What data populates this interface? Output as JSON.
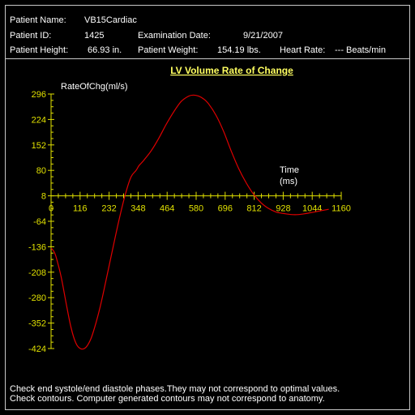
{
  "patient": {
    "name_label": "Patient Name:",
    "name_value": "VB15Cardiac",
    "id_label": "Patient ID:",
    "id_value": "1425",
    "exam_date_label": "Examination Date:",
    "exam_date_value": "9/21/2007",
    "height_label": "Patient Height:",
    "height_value": "66.93 in.",
    "weight_label": "Patient Weight:",
    "weight_value": "154.19 lbs.",
    "heart_rate_label": "Heart Rate:",
    "heart_rate_value": "--- Beats/min"
  },
  "chart_data": {
    "type": "line",
    "title": "LV Volume Rate of Change",
    "ylabel": "RateOfChg(ml/s)",
    "xlabel_line1": "Time",
    "xlabel_line2": "(ms)",
    "xlim": [
      0,
      1160
    ],
    "ylim": [
      -424,
      296
    ],
    "x_ticks": [
      0,
      116,
      232,
      348,
      464,
      580,
      696,
      812,
      928,
      1044,
      1160
    ],
    "y_ticks": [
      296,
      224,
      152,
      80,
      8,
      -64,
      -136,
      -208,
      -280,
      -352,
      -424
    ],
    "grid": false,
    "series": [
      {
        "x": [
          0,
          10,
          20,
          40,
          60,
          80,
          100,
          120,
          140,
          160,
          180,
          200,
          220,
          250,
          280,
          300,
          320,
          340,
          350,
          360,
          370,
          400,
          430,
          460,
          490,
          520,
          550,
          570,
          590,
          610,
          630,
          660,
          690,
          720,
          750,
          780,
          810,
          840,
          870,
          900,
          930,
          960,
          990,
          1020,
          1050,
          1080,
          1110
        ],
        "y": [
          -140,
          -148,
          -165,
          -220,
          -295,
          -365,
          -410,
          -425,
          -420,
          -395,
          -350,
          -295,
          -230,
          -130,
          -35,
          20,
          62,
          80,
          92,
          100,
          108,
          135,
          170,
          210,
          245,
          275,
          290,
          293,
          290,
          282,
          268,
          235,
          190,
          135,
          85,
          45,
          12,
          -12,
          -28,
          -38,
          -42,
          -45,
          -45,
          -42,
          -38,
          -34,
          -30
        ]
      }
    ],
    "colors": {
      "line": "#e00000",
      "axis": "#e0e000",
      "title": "#ffff60"
    }
  },
  "footer": {
    "line1": "Check end systole/end diastole phases.They may not correspond to optimal values.",
    "line2": "Check contours. Computer generated contours may not correspond to anatomy."
  }
}
